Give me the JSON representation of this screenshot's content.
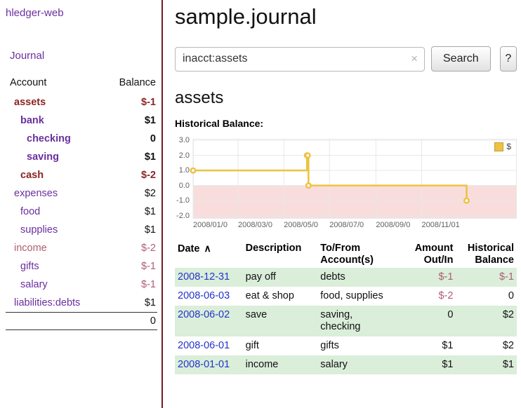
{
  "colors": {
    "purple": "#6a2f9f",
    "maroon": "#8b2525",
    "rose": "#b05d72",
    "link_blue": "#2433cc",
    "stripe_green": "#daeeda",
    "divider": "#6f1f26",
    "gold": "#edc240"
  },
  "sidebar": {
    "title": "hledger-web",
    "journal_link": "Journal",
    "accounts": {
      "header_account": "Account",
      "header_balance": "Balance",
      "rows": [
        {
          "name": "assets",
          "indent": 0,
          "name_color": "maroon",
          "name_bold": true,
          "balance": "$-1",
          "balance_color": "maroon",
          "balance_bold": true
        },
        {
          "name": "bank",
          "indent": 1,
          "name_color": "purple",
          "name_bold": true,
          "balance": "$1",
          "balance_color": "default",
          "balance_bold": true
        },
        {
          "name": "checking",
          "indent": 2,
          "name_color": "purple",
          "name_bold": true,
          "balance": "0",
          "balance_color": "default",
          "balance_bold": true
        },
        {
          "name": "saving",
          "indent": 2,
          "name_color": "purple",
          "name_bold": true,
          "balance": "$1",
          "balance_color": "default",
          "balance_bold": true
        },
        {
          "name": "cash",
          "indent": 1,
          "name_color": "maroon",
          "name_bold": true,
          "balance": "$-2",
          "balance_color": "maroon",
          "balance_bold": true
        },
        {
          "name": "expenses",
          "indent": 0,
          "name_color": "purple",
          "name_bold": false,
          "balance": "$2",
          "balance_color": "default",
          "balance_bold": false
        },
        {
          "name": "food",
          "indent": 1,
          "name_color": "purple",
          "name_bold": false,
          "balance": "$1",
          "balance_color": "default",
          "balance_bold": false
        },
        {
          "name": "supplies",
          "indent": 1,
          "name_color": "purple",
          "name_bold": false,
          "balance": "$1",
          "balance_color": "default",
          "balance_bold": false
        },
        {
          "name": "income",
          "indent": 0,
          "name_color": "rose",
          "name_bold": false,
          "balance": "$-2",
          "balance_color": "rose",
          "balance_bold": false
        },
        {
          "name": "gifts",
          "indent": 1,
          "name_color": "purple",
          "name_bold": false,
          "balance": "$-1",
          "balance_color": "rose",
          "balance_bold": false
        },
        {
          "name": "salary",
          "indent": 1,
          "name_color": "purple",
          "name_bold": false,
          "balance": "$-1",
          "balance_color": "rose",
          "balance_bold": false
        },
        {
          "name": "liabilities:debts",
          "indent": 0,
          "name_color": "purple",
          "name_bold": false,
          "balance": "$1",
          "balance_color": "default",
          "balance_bold": false
        }
      ],
      "total": "0"
    }
  },
  "main": {
    "title": "sample.journal",
    "search": {
      "value": "inacct:assets",
      "clear": "×",
      "button": "Search",
      "help": "?"
    },
    "heading": "assets",
    "chart_title": "Historical Balance:"
  },
  "chart_data": {
    "type": "line",
    "step": true,
    "title": "Historical Balance",
    "xlabel": "",
    "ylabel": "",
    "ylim": [
      -2.2,
      3.1
    ],
    "x_domain": [
      "2008-01-01",
      "2009-03-08"
    ],
    "grid": true,
    "grid_color": "#e7e7e7",
    "negative_region_color": "#f9dddd",
    "legend_position": "top-right",
    "legend": [
      {
        "label": "$",
        "color": "#edc240"
      }
    ],
    "yticks": [
      {
        "value": 3,
        "label": "3.0"
      },
      {
        "value": 2,
        "label": "2.0"
      },
      {
        "value": 1,
        "label": "1.0"
      },
      {
        "value": 0,
        "label": "0.0"
      },
      {
        "value": -1,
        "label": "-1.0"
      },
      {
        "value": -2,
        "label": "-2.0"
      }
    ],
    "xticks": [
      {
        "date": "2008-01-01",
        "label": "2008/01/0"
      },
      {
        "date": "2008-03-01",
        "label": "2008/03/0"
      },
      {
        "date": "2008-05-01",
        "label": "2008/05/0"
      },
      {
        "date": "2008-07-01",
        "label": "2008/07/0"
      },
      {
        "date": "2008-09-01",
        "label": "2008/09/0"
      },
      {
        "date": "2008-11-01",
        "label": "2008/11/01"
      }
    ],
    "series": [
      {
        "name": "$",
        "color": "#edc240",
        "points": [
          {
            "date": "2008-01-01",
            "value": 1
          },
          {
            "date": "2008-06-01",
            "value": 2
          },
          {
            "date": "2008-06-02",
            "value": 2
          },
          {
            "date": "2008-06-03",
            "value": 0
          },
          {
            "date": "2008-12-31",
            "value": -1
          }
        ]
      }
    ]
  },
  "register": {
    "columns": [
      {
        "lines": [
          "Date"
        ],
        "sort_icon": "∧",
        "align": "left"
      },
      {
        "lines": [
          "Description"
        ],
        "align": "left"
      },
      {
        "lines": [
          "To/From",
          "Account(s)"
        ],
        "align": "left"
      },
      {
        "lines": [
          "Amount",
          "Out/In"
        ],
        "align": "right"
      },
      {
        "lines": [
          "Historical",
          "Balance"
        ],
        "align": "right"
      }
    ],
    "rows": [
      {
        "date": "2008-12-31",
        "description": "pay off",
        "accounts": "debts",
        "amount": "$-1",
        "amount_negative": true,
        "balance": "$-1",
        "balance_negative": true
      },
      {
        "date": "2008-06-03",
        "description": "eat & shop",
        "accounts": "food, supplies",
        "amount": "$-2",
        "amount_negative": true,
        "balance": "0",
        "balance_negative": false
      },
      {
        "date": "2008-06-02",
        "description": "save",
        "accounts": "saving, checking",
        "amount": "0",
        "amount_negative": false,
        "balance": "$2",
        "balance_negative": false
      },
      {
        "date": "2008-06-01",
        "description": "gift",
        "accounts": "gifts",
        "amount": "$1",
        "amount_negative": false,
        "balance": "$2",
        "balance_negative": false
      },
      {
        "date": "2008-01-01",
        "description": "income",
        "accounts": "salary",
        "amount": "$1",
        "amount_negative": false,
        "balance": "$1",
        "balance_negative": false
      }
    ]
  }
}
